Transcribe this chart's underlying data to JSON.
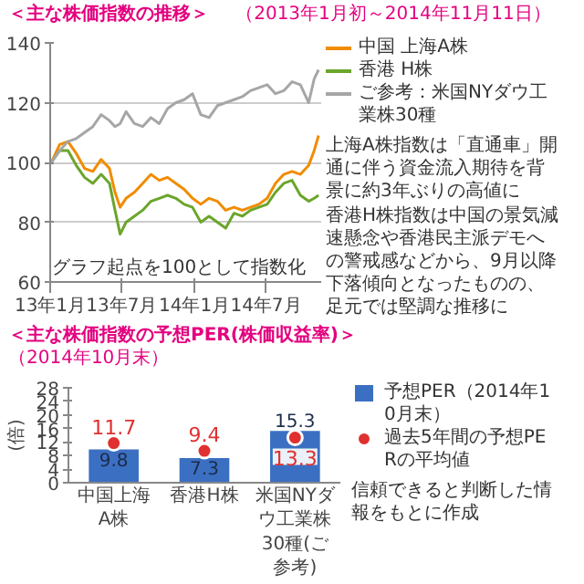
{
  "chart_data": [
    {
      "type": "line",
      "title": "＜主な株価指数の推移＞",
      "subtitle": "（2013年1月初～2014年11月11日）",
      "x": [
        "2013-01-04",
        "2013-01-25",
        "2013-02-15",
        "2013-03-08",
        "2013-03-29",
        "2013-04-19",
        "2013-05-10",
        "2013-05-31",
        "2013-06-14",
        "2013-06-27",
        "2013-07-12",
        "2013-08-02",
        "2013-08-23",
        "2013-09-13",
        "2013-10-04",
        "2013-10-25",
        "2013-11-15",
        "2013-12-06",
        "2013-12-27",
        "2014-01-17",
        "2014-02-07",
        "2014-02-28",
        "2014-03-21",
        "2014-04-11",
        "2014-05-02",
        "2014-05-23",
        "2014-06-13",
        "2014-07-04",
        "2014-07-25",
        "2014-08-15",
        "2014-09-05",
        "2014-09-26",
        "2014-10-17",
        "2014-10-31",
        "2014-11-11"
      ],
      "series": [
        {
          "name": "中国 上海A株",
          "color": "#f08c00",
          "values": [
            100,
            106,
            107,
            103,
            98,
            97,
            101,
            98,
            90,
            85,
            88,
            90,
            93,
            96,
            94,
            95,
            93,
            91,
            88,
            86,
            88,
            87,
            84,
            85,
            84,
            85,
            86,
            88,
            93,
            96,
            97,
            96,
            99,
            104,
            109
          ]
        },
        {
          "name": "香港 H株",
          "color": "#6ba52b",
          "values": [
            100,
            104,
            104,
            99,
            95,
            93,
            96,
            93,
            84,
            76,
            80,
            82,
            84,
            87,
            88,
            89,
            88,
            86,
            85,
            80,
            82,
            80,
            78,
            83,
            82,
            84,
            85,
            86,
            90,
            93,
            94,
            89,
            87,
            88,
            89
          ]
        },
        {
          "name": "ご参考：米国NYダウ工業株30種",
          "color": "#a6a6a6",
          "values": [
            100,
            104,
            107,
            108,
            110,
            112,
            116,
            114,
            112,
            113,
            117,
            113,
            112,
            115,
            113,
            118,
            120,
            121,
            123,
            116,
            115,
            119,
            120,
            121,
            122,
            124,
            125,
            126,
            123,
            124,
            127,
            126,
            120,
            128,
            131
          ]
        }
      ],
      "xlim": [
        "2013-01-01",
        "2014-11-20"
      ],
      "xticks": [
        {
          "value": "2013-01-01",
          "label": "13年1月"
        },
        {
          "value": "2013-07-01",
          "label": "13年7月"
        },
        {
          "value": "2014-01-01",
          "label": "14年1月"
        },
        {
          "value": "2014-07-01",
          "label": "14年7月"
        }
      ],
      "ylim": [
        60,
        140
      ],
      "yticks": [
        60,
        80,
        100,
        120,
        140
      ],
      "grid": "y",
      "legend": "right",
      "annotations": [
        "上海A株指数は「直通車」開通に伴う資金流入期待を背景に約3年ぶりの高値に",
        "香港H株指数は中国の景気減速懸念や香港民主派デモへの警戒感などから、9月以降下落傾向となったものの、足元では堅調な推移に",
        "グラフ起点を100として指数化"
      ]
    },
    {
      "type": "bar",
      "title": "＜主な株価指数の予想PER(株価収益率)＞",
      "subtitle": "（2014年10月末）",
      "ylabel": "(倍)",
      "categories": [
        "中国上海A株",
        "香港H株",
        "米国NYダウ工業株30種(ご参考)"
      ],
      "series": [
        {
          "name": "予想PER（2014年10月末）",
          "color": "#3b6fc2",
          "values": [
            9.8,
            7.3,
            15.3
          ]
        },
        {
          "name": "過去5年間の予想PERの平均値",
          "type": "scatter",
          "color": "#e03030",
          "values": [
            11.7,
            9.4,
            13.3
          ]
        }
      ],
      "ylim": [
        0,
        28
      ],
      "yticks": [
        0,
        4,
        8,
        12,
        16,
        20,
        24,
        28
      ],
      "marker": "circle",
      "data_labels": true,
      "legend": "right",
      "annotations": [
        "信頼できると判断した情報をもとに作成"
      ]
    }
  ]
}
